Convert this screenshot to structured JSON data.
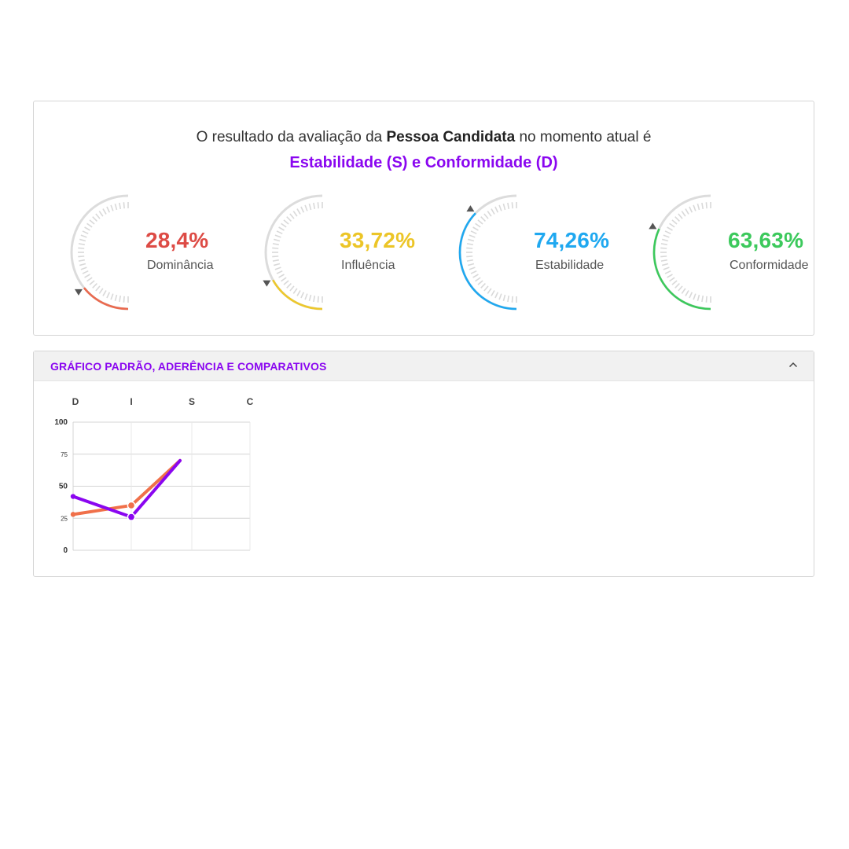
{
  "summary": {
    "prefix": "O resultado da avaliação da ",
    "subject": "Pessoa Candidata",
    "suffix": " no momento atual é",
    "profile": "Estabilidade (S) e Conformidade (D)"
  },
  "gauges": [
    {
      "value_text": "28,4%",
      "label": "Dominância",
      "percent": 28.4,
      "color": "#ea6a4f",
      "value_color": "#dd4b45"
    },
    {
      "value_text": "33,72%",
      "label": "Influência",
      "percent": 33.72,
      "color": "#edc82c",
      "value_color": "#ecc527"
    },
    {
      "value_text": "74,26%",
      "label": "Estabilidade",
      "percent": 74.26,
      "color": "#1fa8f0",
      "value_color": "#1fa8f0"
    },
    {
      "value_text": "63,63%",
      "label": "Conformidade",
      "percent": 63.63,
      "color": "#3cc95c",
      "value_color": "#3cc95c"
    }
  ],
  "accordion": {
    "title": "GRÁFICO PADRÃO, ADERÊNCIA E COMPARATIVOS",
    "toggle_icon": "chevron-up-icon"
  },
  "chart_data": {
    "type": "line",
    "categories": [
      "D",
      "I",
      "S",
      "C"
    ],
    "y_ticks": [
      "100",
      "75",
      "50",
      "25",
      "0"
    ],
    "ylim": [
      0,
      100
    ],
    "grid": true,
    "series": [
      {
        "color": "#f0704a",
        "values": [
          28,
          35,
          70,
          null
        ]
      },
      {
        "color": "#8a06f0",
        "values": [
          42,
          26,
          70,
          null
        ]
      }
    ]
  }
}
